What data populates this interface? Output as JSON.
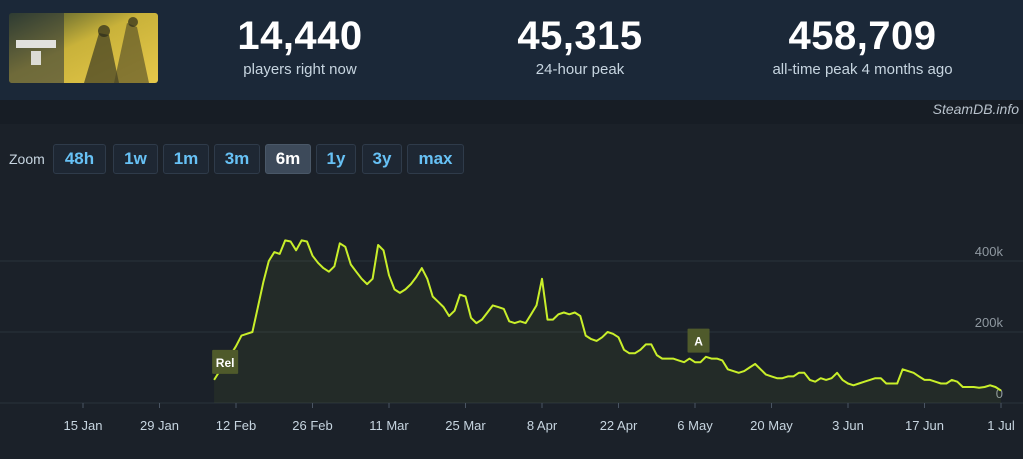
{
  "header": {
    "game_art": "Helldivers 2 capsule art",
    "stats": [
      {
        "value": "14,440",
        "label": "players right now"
      },
      {
        "value": "45,315",
        "label": "24-hour peak"
      },
      {
        "value": "458,709",
        "label": "all-time peak 4 months ago"
      }
    ],
    "credit": "SteamDB.info"
  },
  "zoom": {
    "label": "Zoom",
    "options": [
      "48h",
      "1w",
      "1m",
      "3m",
      "6m",
      "1y",
      "3y",
      "max"
    ],
    "active": "6m"
  },
  "colors": {
    "line": "#c9ef2a",
    "marker_bg": "#4f5a2b",
    "grid": "#2a323c"
  },
  "chart_data": {
    "type": "line",
    "title": "",
    "xlabel": "",
    "ylabel": "",
    "ylim": [
      0,
      460000
    ],
    "y_ticks": [
      {
        "value": 0,
        "label": "0"
      },
      {
        "value": 200000,
        "label": "200k"
      },
      {
        "value": 400000,
        "label": "400k"
      }
    ],
    "x_ticks": [
      "15 Jan",
      "29 Jan",
      "12 Feb",
      "26 Feb",
      "11 Mar",
      "25 Mar",
      "8 Apr",
      "22 Apr",
      "6 May",
      "20 May",
      "3 Jun",
      "17 Jun",
      "1 Jul"
    ],
    "annotations": [
      {
        "label": "Rel",
        "date": "2024-02-08"
      },
      {
        "label": "A",
        "date": "2024-05-05"
      }
    ],
    "grid": true,
    "series": [
      {
        "values": [
          [
            "2024-02-08",
            65000
          ],
          [
            "2024-02-09",
            90000
          ],
          [
            "2024-02-10",
            110000
          ],
          [
            "2024-02-11",
            135000
          ],
          [
            "2024-02-12",
            160000
          ],
          [
            "2024-02-13",
            190000
          ],
          [
            "2024-02-14",
            195000
          ],
          [
            "2024-02-15",
            200000
          ],
          [
            "2024-02-16",
            270000
          ],
          [
            "2024-02-17",
            340000
          ],
          [
            "2024-02-18",
            400000
          ],
          [
            "2024-02-19",
            425000
          ],
          [
            "2024-02-20",
            420000
          ],
          [
            "2024-02-21",
            458000
          ],
          [
            "2024-02-22",
            455000
          ],
          [
            "2024-02-23",
            430000
          ],
          [
            "2024-02-24",
            458000
          ],
          [
            "2024-02-25",
            455000
          ],
          [
            "2024-02-26",
            415000
          ],
          [
            "2024-02-27",
            395000
          ],
          [
            "2024-02-28",
            380000
          ],
          [
            "2024-02-29",
            370000
          ],
          [
            "2024-03-01",
            385000
          ],
          [
            "2024-03-02",
            450000
          ],
          [
            "2024-03-03",
            440000
          ],
          [
            "2024-03-04",
            390000
          ],
          [
            "2024-03-05",
            370000
          ],
          [
            "2024-03-06",
            350000
          ],
          [
            "2024-03-07",
            335000
          ],
          [
            "2024-03-08",
            350000
          ],
          [
            "2024-03-09",
            445000
          ],
          [
            "2024-03-10",
            430000
          ],
          [
            "2024-03-11",
            360000
          ],
          [
            "2024-03-12",
            320000
          ],
          [
            "2024-03-13",
            310000
          ],
          [
            "2024-03-14",
            320000
          ],
          [
            "2024-03-15",
            335000
          ],
          [
            "2024-03-16",
            355000
          ],
          [
            "2024-03-17",
            380000
          ],
          [
            "2024-03-18",
            350000
          ],
          [
            "2024-03-19",
            300000
          ],
          [
            "2024-03-20",
            285000
          ],
          [
            "2024-03-21",
            270000
          ],
          [
            "2024-03-22",
            245000
          ],
          [
            "2024-03-23",
            260000
          ],
          [
            "2024-03-24",
            305000
          ],
          [
            "2024-03-25",
            300000
          ],
          [
            "2024-03-26",
            240000
          ],
          [
            "2024-03-27",
            225000
          ],
          [
            "2024-03-28",
            235000
          ],
          [
            "2024-03-29",
            255000
          ],
          [
            "2024-03-30",
            275000
          ],
          [
            "2024-03-31",
            270000
          ],
          [
            "2024-04-01",
            265000
          ],
          [
            "2024-04-02",
            230000
          ],
          [
            "2024-04-03",
            225000
          ],
          [
            "2024-04-04",
            230000
          ],
          [
            "2024-04-05",
            225000
          ],
          [
            "2024-04-06",
            250000
          ],
          [
            "2024-04-07",
            275000
          ],
          [
            "2024-04-08",
            350000
          ],
          [
            "2024-04-09",
            235000
          ],
          [
            "2024-04-10",
            235000
          ],
          [
            "2024-04-11",
            250000
          ],
          [
            "2024-04-12",
            255000
          ],
          [
            "2024-04-13",
            250000
          ],
          [
            "2024-04-14",
            255000
          ],
          [
            "2024-04-15",
            245000
          ],
          [
            "2024-04-16",
            190000
          ],
          [
            "2024-04-17",
            180000
          ],
          [
            "2024-04-18",
            175000
          ],
          [
            "2024-04-19",
            185000
          ],
          [
            "2024-04-20",
            200000
          ],
          [
            "2024-04-21",
            195000
          ],
          [
            "2024-04-22",
            185000
          ],
          [
            "2024-04-23",
            150000
          ],
          [
            "2024-04-24",
            140000
          ],
          [
            "2024-04-25",
            140000
          ],
          [
            "2024-04-26",
            150000
          ],
          [
            "2024-04-27",
            165000
          ],
          [
            "2024-04-28",
            165000
          ],
          [
            "2024-04-29",
            135000
          ],
          [
            "2024-04-30",
            125000
          ],
          [
            "2024-05-01",
            125000
          ],
          [
            "2024-05-02",
            125000
          ],
          [
            "2024-05-03",
            120000
          ],
          [
            "2024-05-04",
            115000
          ],
          [
            "2024-05-05",
            125000
          ],
          [
            "2024-05-06",
            115000
          ],
          [
            "2024-05-07",
            115000
          ],
          [
            "2024-05-08",
            130000
          ],
          [
            "2024-05-09",
            125000
          ],
          [
            "2024-05-10",
            125000
          ],
          [
            "2024-05-11",
            120000
          ],
          [
            "2024-05-12",
            95000
          ],
          [
            "2024-05-13",
            90000
          ],
          [
            "2024-05-14",
            85000
          ],
          [
            "2024-05-15",
            90000
          ],
          [
            "2024-05-16",
            100000
          ],
          [
            "2024-05-17",
            110000
          ],
          [
            "2024-05-18",
            95000
          ],
          [
            "2024-05-19",
            80000
          ],
          [
            "2024-05-20",
            75000
          ],
          [
            "2024-05-21",
            70000
          ],
          [
            "2024-05-22",
            70000
          ],
          [
            "2024-05-23",
            75000
          ],
          [
            "2024-05-24",
            75000
          ],
          [
            "2024-05-25",
            85000
          ],
          [
            "2024-05-26",
            85000
          ],
          [
            "2024-05-27",
            65000
          ],
          [
            "2024-05-28",
            60000
          ],
          [
            "2024-05-29",
            70000
          ],
          [
            "2024-05-30",
            65000
          ],
          [
            "2024-05-31",
            70000
          ],
          [
            "2024-06-01",
            85000
          ],
          [
            "2024-06-02",
            65000
          ],
          [
            "2024-06-03",
            55000
          ],
          [
            "2024-06-04",
            50000
          ],
          [
            "2024-06-05",
            55000
          ],
          [
            "2024-06-06",
            60000
          ],
          [
            "2024-06-07",
            65000
          ],
          [
            "2024-06-08",
            70000
          ],
          [
            "2024-06-09",
            70000
          ],
          [
            "2024-06-10",
            55000
          ],
          [
            "2024-06-11",
            55000
          ],
          [
            "2024-06-12",
            55000
          ],
          [
            "2024-06-13",
            95000
          ],
          [
            "2024-06-14",
            90000
          ],
          [
            "2024-06-15",
            85000
          ],
          [
            "2024-06-16",
            75000
          ],
          [
            "2024-06-17",
            65000
          ],
          [
            "2024-06-18",
            65000
          ],
          [
            "2024-06-19",
            60000
          ],
          [
            "2024-06-20",
            55000
          ],
          [
            "2024-06-21",
            55000
          ],
          [
            "2024-06-22",
            65000
          ],
          [
            "2024-06-23",
            60000
          ],
          [
            "2024-06-24",
            45000
          ],
          [
            "2024-06-25",
            45000
          ],
          [
            "2024-06-26",
            45000
          ],
          [
            "2024-06-27",
            43000
          ],
          [
            "2024-06-28",
            45000
          ],
          [
            "2024-06-29",
            50000
          ],
          [
            "2024-06-30",
            45000
          ],
          [
            "2024-07-01",
            35000
          ]
        ]
      }
    ]
  }
}
